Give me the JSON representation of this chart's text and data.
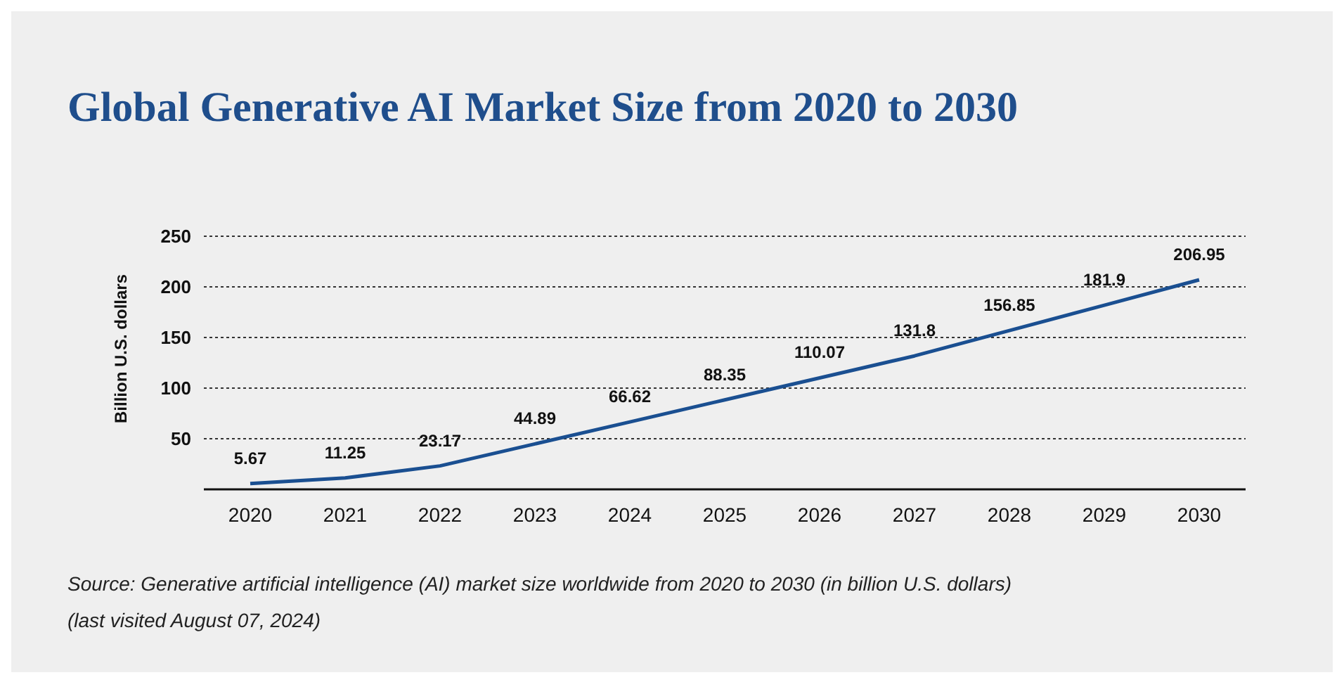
{
  "chart_data": {
    "type": "line",
    "title": "Global Generative AI Market Size from 2020 to 2030",
    "ylabel": "Billion U.S. dollars",
    "categories": [
      "2020",
      "2021",
      "2022",
      "2023",
      "2024",
      "2025",
      "2026",
      "2027",
      "2028",
      "2029",
      "2030"
    ],
    "series": [
      {
        "color": "#1a4f91",
        "values": [
          5.67,
          11.25,
          23.17,
          44.89,
          66.62,
          88.35,
          110.07,
          131.8,
          156.85,
          181.9,
          206.95
        ]
      }
    ],
    "ylim": [
      0,
      250
    ],
    "yticks": [
      50,
      100,
      150,
      200,
      250
    ],
    "grid": "y",
    "data_labels": true,
    "marker": "none",
    "line_style": "solid",
    "annotations": [
      "Source: Generative artificial intelligence (AI) market size worldwide from 2020 to 2030 (in billion U.S. dollars)",
      "(last visited August 07, 2024)"
    ]
  }
}
